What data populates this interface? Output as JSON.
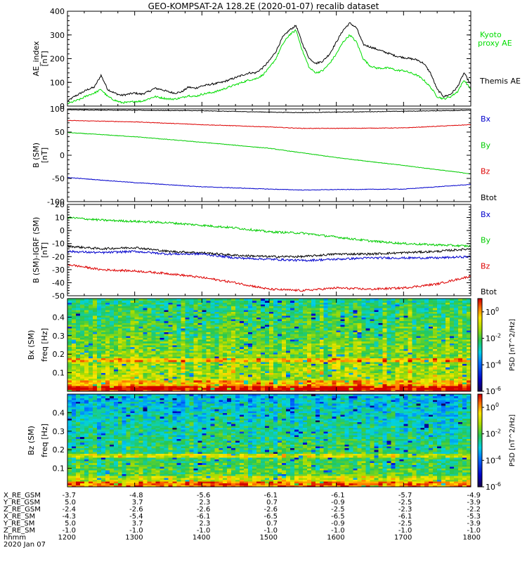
{
  "title": "GEO-KOMPSAT-2A 128.2E (2020-01-07) recalib dataset",
  "chart_data": [
    {
      "type": "line",
      "panel": "ae",
      "ylabel": [
        "AE_index",
        "[nT]"
      ],
      "xlim": [
        12,
        18
      ],
      "ylim": [
        0,
        400
      ],
      "yticks": [
        0,
        100,
        200,
        300,
        400
      ],
      "legend": [
        {
          "text": "Kyoto",
          "color": "#00dd00"
        },
        {
          "text": "proxy AE",
          "color": "#00dd00"
        },
        {
          "text": "Themis AE",
          "color": "#000000"
        }
      ],
      "series": [
        {
          "name": "Themis AE",
          "color": "#000000",
          "x": [
            12.0,
            12.1,
            12.2,
            12.3,
            12.4,
            12.5,
            12.6,
            12.7,
            12.8,
            12.9,
            13.0,
            13.1,
            13.2,
            13.3,
            13.4,
            13.5,
            13.6,
            13.7,
            13.8,
            13.9,
            14.0,
            14.1,
            14.2,
            14.3,
            14.4,
            14.5,
            14.6,
            14.7,
            14.8,
            14.9,
            15.0,
            15.1,
            15.2,
            15.3,
            15.4,
            15.5,
            15.6,
            15.7,
            15.8,
            15.9,
            16.0,
            16.1,
            16.2,
            16.3,
            16.4,
            16.5,
            16.6,
            16.7,
            16.8,
            16.9,
            17.0,
            17.1,
            17.2,
            17.3,
            17.4,
            17.5,
            17.6,
            17.7,
            17.8,
            17.9,
            18.0
          ],
          "y": [
            20,
            40,
            55,
            70,
            80,
            130,
            70,
            55,
            45,
            50,
            55,
            50,
            60,
            75,
            70,
            60,
            55,
            60,
            80,
            75,
            85,
            90,
            95,
            100,
            110,
            120,
            130,
            140,
            140,
            160,
            190,
            230,
            290,
            320,
            340,
            260,
            200,
            180,
            190,
            220,
            270,
            320,
            350,
            330,
            260,
            250,
            240,
            230,
            220,
            210,
            205,
            200,
            195,
            180,
            140,
            70,
            40,
            50,
            80,
            140,
            90
          ]
        },
        {
          "name": "Kyoto proxy AE",
          "color": "#00dd00",
          "x": [
            12.0,
            12.1,
            12.2,
            12.3,
            12.4,
            12.5,
            12.6,
            12.7,
            12.8,
            12.9,
            13.0,
            13.1,
            13.2,
            13.3,
            13.4,
            13.5,
            13.6,
            13.7,
            13.8,
            13.9,
            14.0,
            14.1,
            14.2,
            14.3,
            14.4,
            14.5,
            14.6,
            14.7,
            14.8,
            14.9,
            15.0,
            15.1,
            15.2,
            15.3,
            15.4,
            15.5,
            15.6,
            15.7,
            15.8,
            15.9,
            16.0,
            16.1,
            16.2,
            16.3,
            16.4,
            16.5,
            16.6,
            16.7,
            16.8,
            16.9,
            17.0,
            17.1,
            17.2,
            17.3,
            17.4,
            17.5,
            17.6,
            17.7,
            17.8,
            17.9,
            18.0
          ],
          "y": [
            10,
            20,
            30,
            45,
            55,
            70,
            40,
            25,
            15,
            15,
            20,
            20,
            30,
            40,
            35,
            30,
            30,
            35,
            45,
            40,
            50,
            55,
            60,
            70,
            80,
            90,
            100,
            110,
            115,
            130,
            160,
            200,
            260,
            300,
            320,
            230,
            160,
            140,
            150,
            180,
            220,
            270,
            300,
            270,
            200,
            170,
            160,
            160,
            160,
            150,
            150,
            140,
            130,
            110,
            80,
            40,
            30,
            40,
            60,
            110,
            70
          ]
        }
      ]
    },
    {
      "type": "line",
      "panel": "b",
      "ylabel": [
        "B (SM)",
        "[nT]"
      ],
      "xlim": [
        12,
        18
      ],
      "ylim": [
        -100,
        100
      ],
      "yticks": [
        100,
        50,
        0,
        -50,
        -100
      ],
      "legend": [
        {
          "text": "Bx",
          "color": "#0000cc"
        },
        {
          "text": "By",
          "color": "#00cc00"
        },
        {
          "text": "Bz",
          "color": "#dd0000"
        },
        {
          "text": "Btot",
          "color": "#000000"
        }
      ],
      "series": [
        {
          "name": "Btot",
          "color": "#000000",
          "x": [
            12,
            13,
            14,
            15,
            15.5,
            16,
            17,
            18
          ],
          "y": [
            98,
            97,
            96,
            93,
            92,
            93,
            95,
            97
          ]
        },
        {
          "name": "Bz",
          "color": "#dd0000",
          "x": [
            12,
            13,
            14,
            15,
            15.5,
            16,
            17,
            18
          ],
          "y": [
            75,
            72,
            66,
            61,
            58,
            58,
            59,
            66
          ]
        },
        {
          "name": "By",
          "color": "#00cc00",
          "x": [
            12,
            13,
            14,
            15,
            15.5,
            16,
            17,
            18
          ],
          "y": [
            49,
            40,
            28,
            15,
            5,
            -5,
            -22,
            -40
          ]
        },
        {
          "name": "Bx",
          "color": "#0000cc",
          "x": [
            12,
            13,
            14,
            15,
            15.5,
            16,
            17,
            18
          ],
          "y": [
            -48,
            -59,
            -68,
            -73,
            -75,
            -74,
            -73,
            -63
          ]
        }
      ]
    },
    {
      "type": "line",
      "panel": "db",
      "ylabel": [
        "B (SM)-IGRF (SM)",
        "[nT]"
      ],
      "xlim": [
        12,
        18
      ],
      "ylim": [
        -50,
        20
      ],
      "yticks": [
        20,
        10,
        0,
        -10,
        -20,
        -30,
        -40,
        -50
      ],
      "legend": [
        {
          "text": "Bx",
          "color": "#0000cc"
        },
        {
          "text": "By",
          "color": "#00cc00"
        },
        {
          "text": "Bz",
          "color": "#dd0000"
        },
        {
          "text": "Btot",
          "color": "#000000"
        }
      ],
      "series": [
        {
          "name": "By",
          "color": "#00cc00",
          "x": [
            12,
            12.5,
            13,
            13.5,
            14,
            14.5,
            15,
            15.5,
            16,
            16.5,
            17,
            17.5,
            18
          ],
          "y": [
            10,
            8,
            7,
            6,
            4,
            2,
            -1,
            -2,
            -5,
            -8,
            -10,
            -11,
            -12
          ]
        },
        {
          "name": "Btot",
          "color": "#000000",
          "x": [
            12,
            12.5,
            13,
            13.5,
            14,
            14.5,
            15,
            15.5,
            16,
            16.5,
            17,
            17.5,
            18
          ],
          "y": [
            -12,
            -14,
            -13,
            -16,
            -17,
            -19,
            -20,
            -20,
            -18,
            -18,
            -17,
            -16,
            -14
          ]
        },
        {
          "name": "Bx",
          "color": "#0000cc",
          "x": [
            12,
            12.5,
            13,
            13.5,
            14,
            14.5,
            15,
            15.5,
            16,
            16.5,
            17,
            17.5,
            18
          ],
          "y": [
            -16,
            -17,
            -16,
            -18,
            -18,
            -21,
            -22,
            -23,
            -22,
            -21,
            -21,
            -21,
            -20
          ]
        },
        {
          "name": "Bz",
          "color": "#dd0000",
          "x": [
            12,
            12.5,
            13,
            13.5,
            14,
            14.5,
            15,
            15.5,
            16,
            16.5,
            17,
            17.5,
            18
          ],
          "y": [
            -26,
            -30,
            -31,
            -33,
            -36,
            -40,
            -45,
            -46,
            -44,
            -45,
            -44,
            -41,
            -35
          ]
        }
      ]
    },
    {
      "type": "heatmap",
      "panel": "spec_bx",
      "ylabel": [
        "Bx (SM)",
        "freq [Hz]"
      ],
      "xlim": [
        12,
        18
      ],
      "ylim": [
        0,
        0.5
      ],
      "yticks": [
        0.1,
        0.2,
        0.3,
        0.4
      ],
      "colorbar": {
        "label": "PSD [nT^2/Hz]",
        "log_range": [
          -6,
          1
        ],
        "ticks": [
          0,
          -2,
          -4,
          -6
        ]
      },
      "notes": "Power decreases with frequency; persistent line near 0.17 Hz; red near lowest frequencies."
    },
    {
      "type": "heatmap",
      "panel": "spec_bz",
      "ylabel": [
        "Bz (SM)",
        "freq [Hz]"
      ],
      "xlim": [
        12,
        18
      ],
      "ylim": [
        0,
        0.5
      ],
      "yticks": [
        0.1,
        0.2,
        0.3,
        0.4
      ],
      "colorbar": {
        "label": "PSD [nT^2/Hz]",
        "log_range": [
          -6,
          1
        ],
        "ticks": [
          0,
          -2,
          -4,
          -6
        ]
      },
      "notes": "Lower power than Bx; persistent lines near 0.17 Hz and 0.15 Hz."
    }
  ],
  "ephemeris": {
    "labels": [
      "X_RE_GSM",
      "Y_RE_GSM",
      "Z_RE_GSM",
      "X_RE_SM",
      "Y_RE_SM",
      "Z_RE_SM",
      "hhmm"
    ],
    "date": "2020 Jan 07",
    "columns": [
      {
        "t": 12,
        "vals": [
          "-3.7",
          "5.0",
          "-2.4",
          "-4.3",
          "5.0",
          "-1.0",
          "1200"
        ]
      },
      {
        "t": 13,
        "vals": [
          "-4.8",
          "3.7",
          "-2.6",
          "-5.4",
          "3.7",
          "-1.0",
          "1300"
        ]
      },
      {
        "t": 14,
        "vals": [
          "-5.6",
          "2.3",
          "-2.6",
          "-6.1",
          "2.3",
          "-1.0",
          "1400"
        ]
      },
      {
        "t": 15,
        "vals": [
          "-6.1",
          "0.7",
          "-2.6",
          "-6.5",
          "0.7",
          "-1.0",
          "1500"
        ]
      },
      {
        "t": 16,
        "vals": [
          "-6.1",
          "-0.9",
          "-2.5",
          "-6.5",
          "-0.9",
          "-1.0",
          "1600"
        ]
      },
      {
        "t": 17,
        "vals": [
          "-5.7",
          "-2.5",
          "-2.3",
          "-6.1",
          "-2.5",
          "-1.0",
          "1700"
        ]
      },
      {
        "t": 18,
        "vals": [
          "-4.9",
          "-3.9",
          "-2.2",
          "-5.3",
          "-3.9",
          "-1.0",
          "1800"
        ]
      }
    ]
  }
}
